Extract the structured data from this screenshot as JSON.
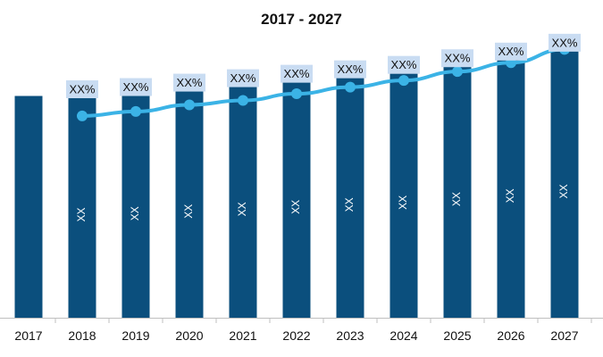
{
  "chart_data": {
    "type": "bar",
    "title": "2017 - 2027",
    "categories": [
      "2017",
      "2018",
      "2019",
      "2020",
      "2021",
      "2022",
      "2023",
      "2024",
      "2025",
      "2026",
      "2027"
    ],
    "series": [
      {
        "type": "bar",
        "values": [
          100,
          101,
          102,
          104,
          106,
          108,
          110,
          112,
          115,
          118,
          122
        ],
        "data_labels": [
          "",
          "XX",
          "XX",
          "XX",
          "XX",
          "XX",
          "XX",
          "XX",
          "XX",
          "XX",
          "XX"
        ]
      },
      {
        "type": "line",
        "values": [
          null,
          91,
          93,
          96,
          98,
          101,
          104,
          107,
          111,
          115,
          121
        ],
        "data_labels": [
          "",
          "XX%",
          "XX%",
          "XX%",
          "XX%",
          "XX%",
          "XX%",
          "XX%",
          "XX%",
          "XX%",
          "XX%"
        ]
      }
    ],
    "ylim": [
      0,
      132
    ],
    "grid": false,
    "legend": "none",
    "colors": {
      "bar": "#0b4f7d",
      "line": "#3bb3e6",
      "label_box": "#c9dcf2",
      "axis": "#bfbfbf"
    }
  }
}
